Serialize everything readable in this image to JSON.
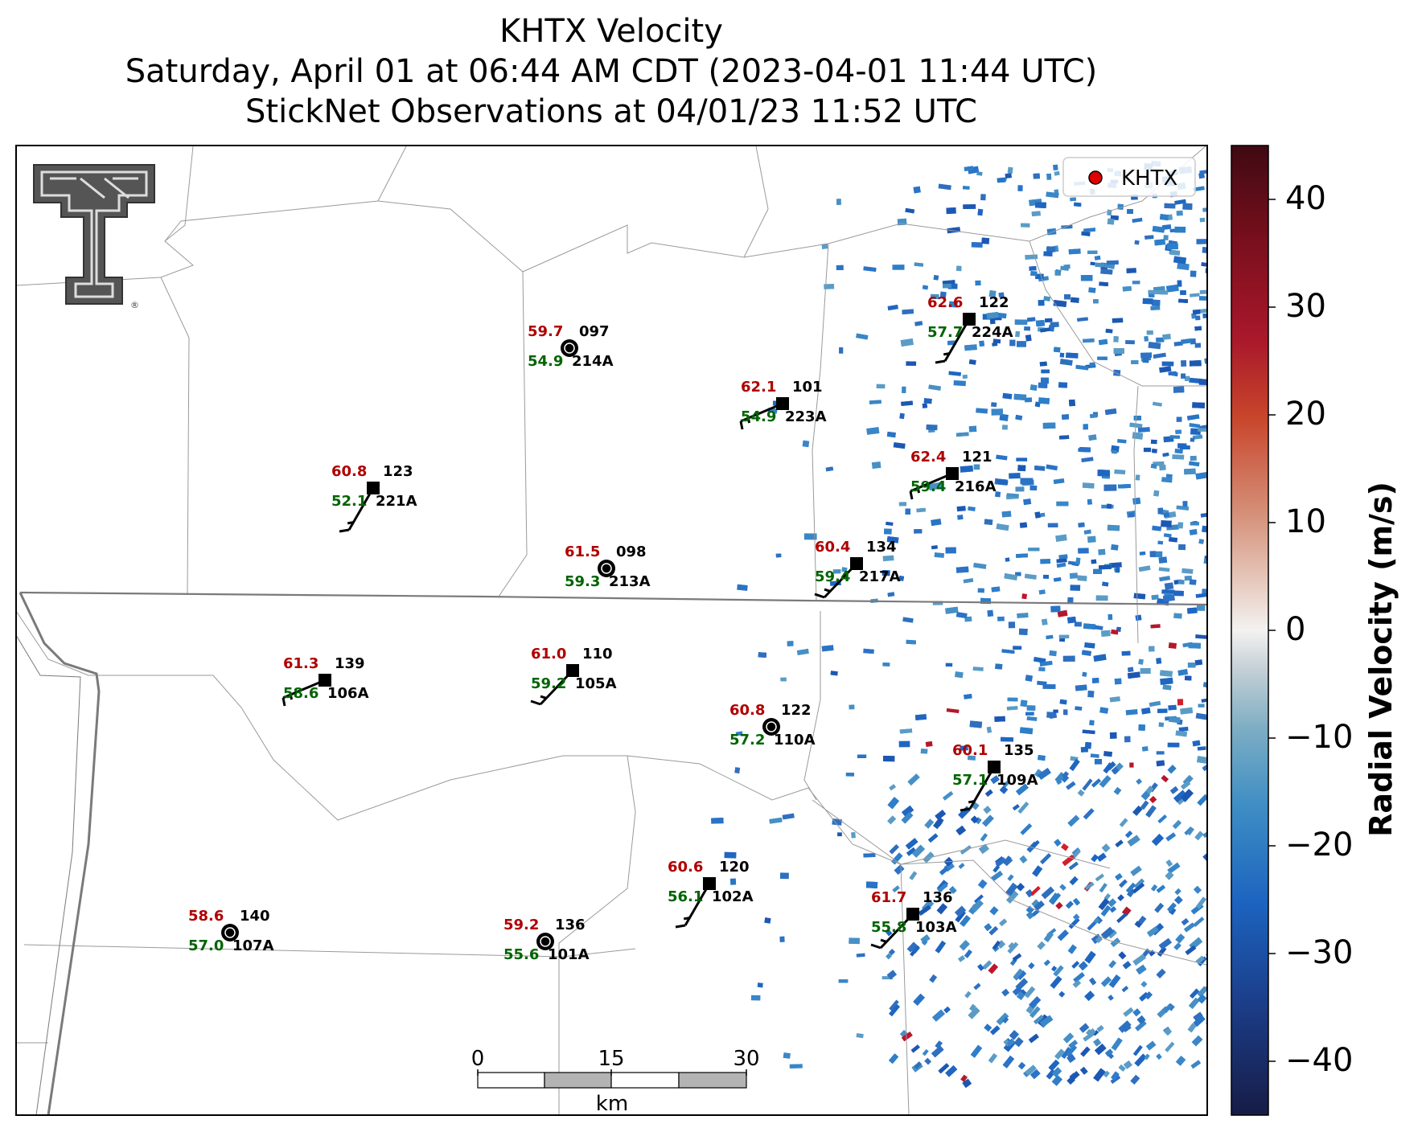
{
  "title": {
    "line1": "KHTX Velocity",
    "line2": "Saturday, April 01 at 06:44 AM CDT (2023-04-01 11:44 UTC)",
    "line3": "StickNet Observations at 04/01/23 11:52 UTC"
  },
  "legend": {
    "label": "KHTX",
    "marker_color": "#e00000"
  },
  "colorbar": {
    "label": "Radial Velocity (m/s)",
    "ticks": [
      "40",
      "30",
      "20",
      "10",
      "0",
      "−10",
      "−20",
      "−30",
      "−40"
    ],
    "range": [
      -45,
      45
    ]
  },
  "scale_bar": {
    "labels": [
      "0",
      "15",
      "30"
    ],
    "unit": "km"
  },
  "logo": {
    "name": "texas-tech-double-t-logo",
    "mark": "®"
  },
  "stations": [
    {
      "temp": "59.7",
      "dew": "54.9",
      "dir": "097",
      "id": "214A",
      "marker": "circle",
      "barb": "none"
    },
    {
      "temp": "62.6",
      "dew": "57.7",
      "dir": "122",
      "id": "224A",
      "marker": "square",
      "barb": "ssw"
    },
    {
      "temp": "62.1",
      "dew": "54.9",
      "dir": "101",
      "id": "223A",
      "marker": "square",
      "barb": "wsw"
    },
    {
      "temp": "60.8",
      "dew": "52.1",
      "dir": "123",
      "id": "221A",
      "marker": "square",
      "barb": "ssw"
    },
    {
      "temp": "62.4",
      "dew": "59.4",
      "dir": "121",
      "id": "216A",
      "marker": "square",
      "barb": "wsw"
    },
    {
      "temp": "61.5",
      "dew": "59.3",
      "dir": "098",
      "id": "213A",
      "marker": "circle",
      "barb": "none"
    },
    {
      "temp": "60.4",
      "dew": "59.4",
      "dir": "134",
      "id": "217A",
      "marker": "square",
      "barb": "sw"
    },
    {
      "temp": "61.3",
      "dew": "58.6",
      "dir": "139",
      "id": "106A",
      "marker": "square",
      "barb": "wsw"
    },
    {
      "temp": "61.0",
      "dew": "59.2",
      "dir": "110",
      "id": "105A",
      "marker": "square",
      "barb": "sw"
    },
    {
      "temp": "60.8",
      "dew": "57.2",
      "dir": "122",
      "id": "110A",
      "marker": "circle",
      "barb": "none"
    },
    {
      "temp": "60.1",
      "dew": "57.1",
      "dir": "135",
      "id": "109A",
      "marker": "square",
      "barb": "ssw"
    },
    {
      "temp": "60.6",
      "dew": "56.1",
      "dir": "120",
      "id": "102A",
      "marker": "square",
      "barb": "ssw"
    },
    {
      "temp": "61.7",
      "dew": "55.8",
      "dir": "136",
      "id": "103A",
      "marker": "square",
      "barb": "sw"
    },
    {
      "temp": "58.6",
      "dew": "57.0",
      "dir": "140",
      "id": "107A",
      "marker": "circle",
      "barb": "none"
    },
    {
      "temp": "59.2",
      "dew": "55.6",
      "dir": "136",
      "id": "101A",
      "marker": "circle",
      "barb": "none"
    }
  ]
}
